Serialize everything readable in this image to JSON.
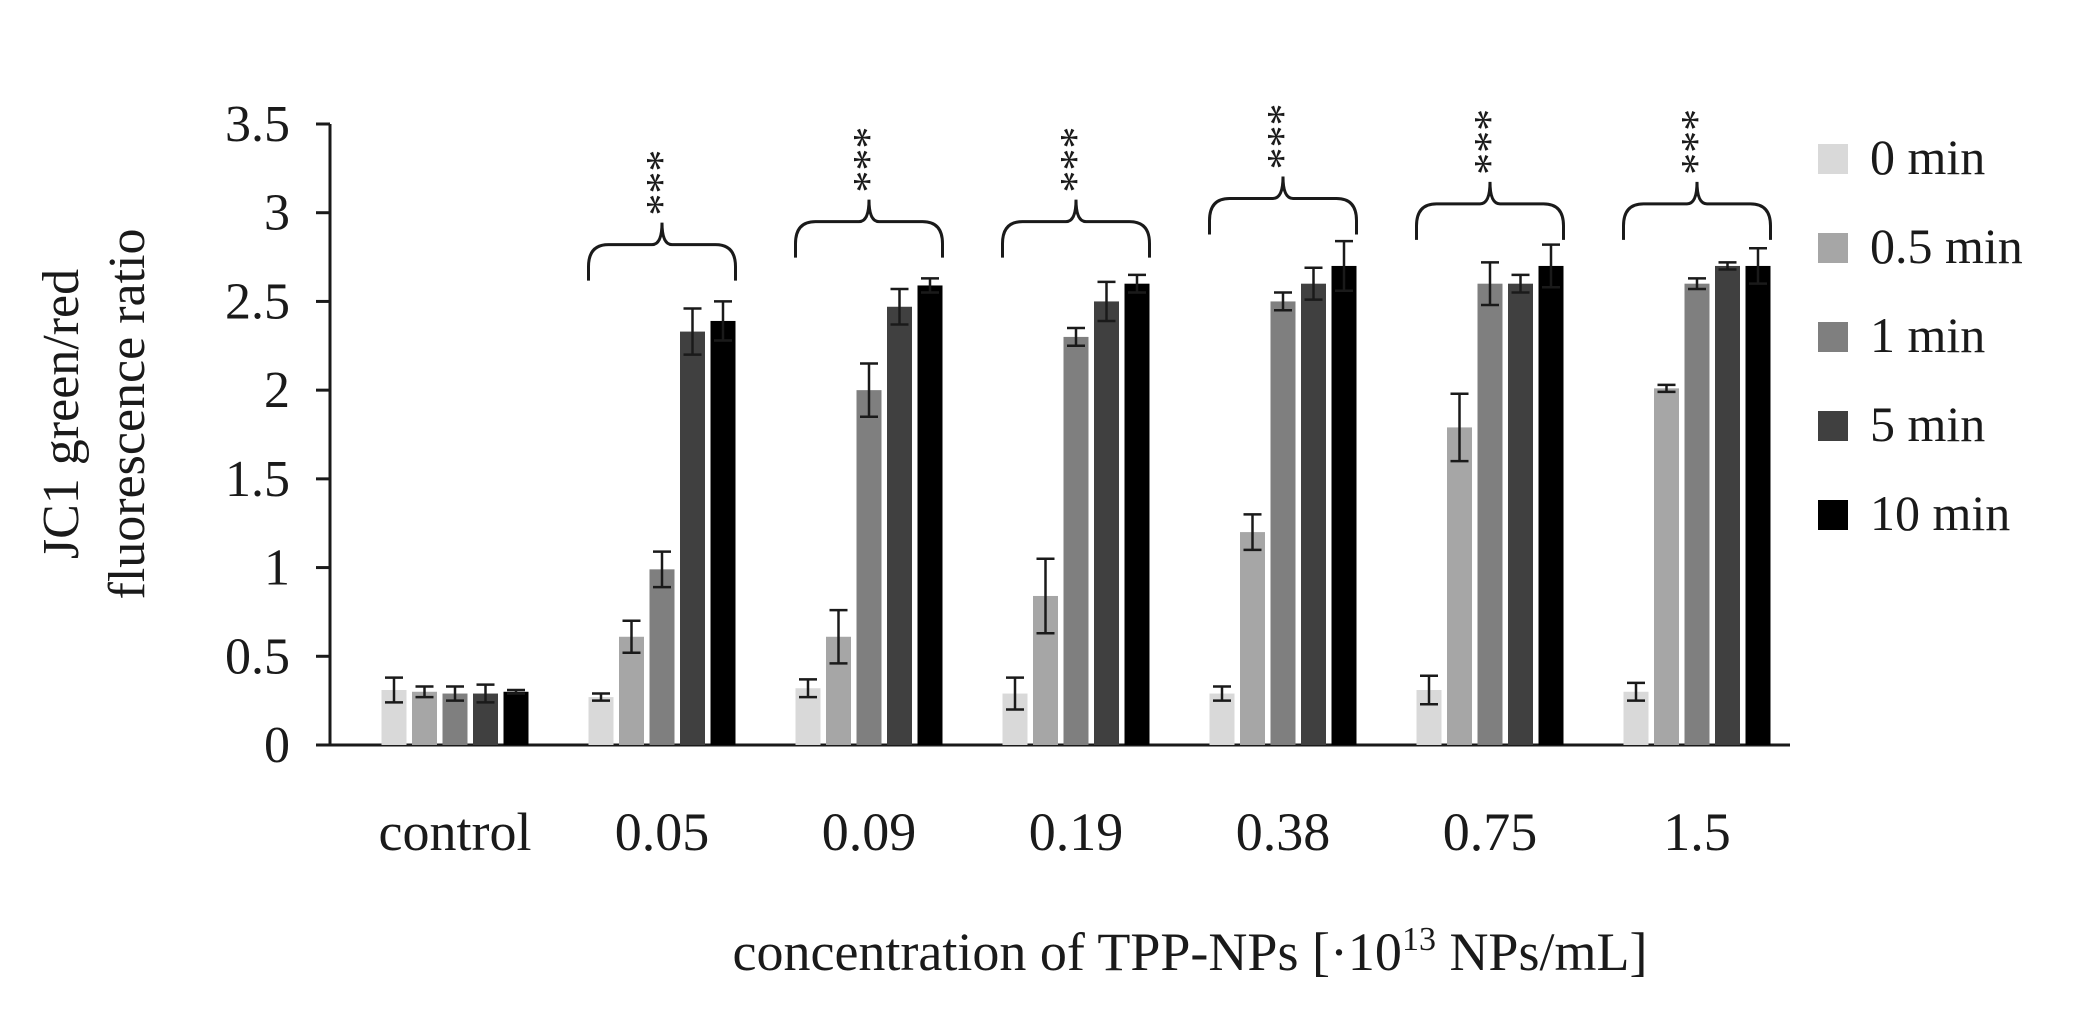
{
  "chart_data": {
    "type": "bar",
    "xlabel": "concentration of TPP-NPs [·10",
    "xlabel_sup": "13",
    "xlabel_end": " NPs/mL]",
    "ylabel_line1": "JC1 green/red",
    "ylabel_line2": "fluorescence ratio",
    "ylim": [
      0,
      3.5
    ],
    "yticks": [
      "0",
      "0.5",
      "1",
      "1.5",
      "2",
      "2.5",
      "3",
      "3.5"
    ],
    "categories": [
      "control",
      "0.05",
      "0.09",
      "0.19",
      "0.38",
      "0.75",
      "1.5"
    ],
    "series": [
      {
        "name": "0 min",
        "color": "#d9d9d9",
        "values": [
          0.31,
          0.27,
          0.32,
          0.29,
          0.29,
          0.31,
          0.3
        ],
        "errors": [
          0.07,
          0.02,
          0.05,
          0.09,
          0.04,
          0.08,
          0.05
        ]
      },
      {
        "name": "0.5 min",
        "color": "#a6a6a6",
        "values": [
          0.3,
          0.61,
          0.61,
          0.84,
          1.2,
          1.79,
          2.01
        ],
        "errors": [
          0.03,
          0.09,
          0.15,
          0.21,
          0.1,
          0.19,
          0.02
        ]
      },
      {
        "name": "1 min",
        "color": "#7f7f7f",
        "values": [
          0.29,
          0.99,
          2.0,
          2.3,
          2.5,
          2.6,
          2.6
        ],
        "errors": [
          0.04,
          0.1,
          0.15,
          0.05,
          0.05,
          0.12,
          0.03
        ]
      },
      {
        "name": "5 min",
        "color": "#404040",
        "values": [
          0.29,
          2.33,
          2.47,
          2.5,
          2.6,
          2.6,
          2.7
        ],
        "errors": [
          0.05,
          0.13,
          0.1,
          0.11,
          0.09,
          0.05,
          0.02
        ]
      },
      {
        "name": "10 min",
        "color": "#000000",
        "values": [
          0.3,
          2.39,
          2.59,
          2.6,
          2.7,
          2.7,
          2.7
        ],
        "errors": [
          0.01,
          0.11,
          0.04,
          0.05,
          0.14,
          0.12,
          0.1
        ]
      }
    ],
    "significance": [
      {
        "category_index": 1,
        "label": "***",
        "brace_top": 2.82
      },
      {
        "category_index": 2,
        "label": "***",
        "brace_top": 2.95
      },
      {
        "category_index": 3,
        "label": "***",
        "brace_top": 2.95
      },
      {
        "category_index": 4,
        "label": "***",
        "brace_top": 3.08
      },
      {
        "category_index": 5,
        "label": "***",
        "brace_top": 3.05
      },
      {
        "category_index": 6,
        "label": "***",
        "brace_top": 3.05
      }
    ]
  }
}
